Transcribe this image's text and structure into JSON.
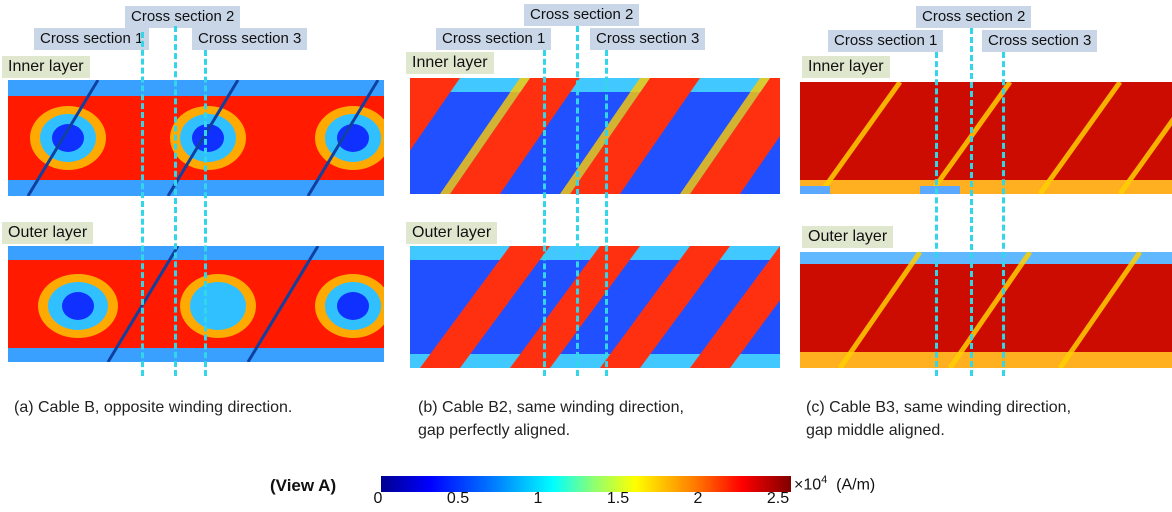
{
  "cross_section_labels": [
    "Cross section 1",
    "Cross section 2",
    "Cross section 3"
  ],
  "layer_labels": {
    "inner": "Inner layer",
    "outer": "Outer layer"
  },
  "panels": [
    {
      "caption_lines": [
        "(a) Cable B, opposite winding direction."
      ],
      "field": "mixed"
    },
    {
      "caption_lines": [
        "(b) Cable B2, same winding direction,",
        "gap perfectly aligned."
      ],
      "field": "blue"
    },
    {
      "caption_lines": [
        "(c) Cable B3, same winding direction,",
        "gap middle aligned."
      ],
      "field": "red"
    }
  ],
  "colorbar": {
    "title": "(View A)",
    "ticks": [
      "0",
      "0.5",
      "1",
      "1.5",
      "2",
      "2.5"
    ],
    "multiplier": "×10",
    "exponent": "4",
    "unit": "(A/m)"
  },
  "colors": {
    "cross_line": "#33d6e8",
    "label_bg": "#c9d6e8",
    "layer_bg": "#dfe8cf"
  }
}
